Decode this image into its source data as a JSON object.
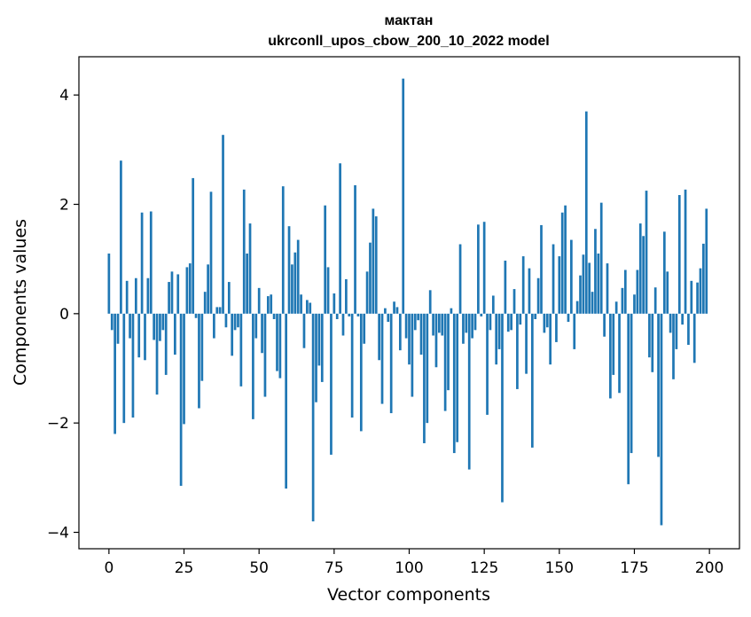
{
  "chart_data": {
    "type": "bar",
    "title": "мактан",
    "subtitle": "ukrconll_upos_cbow_200_10_2022 model",
    "xlabel": "Vector components",
    "ylabel": "Components values",
    "xlim": [
      -10,
      210
    ],
    "ylim": [
      -4.3,
      4.7
    ],
    "xticks": [
      0,
      25,
      50,
      75,
      100,
      125,
      150,
      175,
      200
    ],
    "yticks": [
      -4,
      -2,
      0,
      2,
      4
    ],
    "ytick_labels": [
      "−4",
      "−2",
      "0",
      "2",
      "4"
    ],
    "grid": false,
    "bar_color": "#1f77b4",
    "values": [
      1.1,
      -0.3,
      -2.2,
      -0.55,
      2.8,
      -2.0,
      0.6,
      -0.45,
      -1.9,
      0.65,
      -0.8,
      1.85,
      -0.85,
      0.65,
      1.87,
      -0.48,
      -1.48,
      -0.5,
      -0.3,
      -1.12,
      0.58,
      0.77,
      -0.75,
      0.72,
      -3.15,
      -2.02,
      0.85,
      0.92,
      2.48,
      -0.08,
      -1.73,
      -1.23,
      0.4,
      0.9,
      2.23,
      -0.45,
      0.12,
      0.12,
      3.27,
      -0.25,
      0.58,
      -0.77,
      -0.3,
      -0.25,
      -1.33,
      2.27,
      1.1,
      1.65,
      -1.93,
      -0.45,
      0.47,
      -0.72,
      -1.52,
      0.32,
      0.35,
      -0.1,
      -1.05,
      -1.18,
      2.33,
      -3.2,
      1.6,
      0.9,
      1.12,
      1.35,
      0.35,
      -0.63,
      0.25,
      0.2,
      -3.8,
      -1.62,
      -0.95,
      -1.25,
      1.98,
      0.85,
      -2.58,
      0.37,
      -0.1,
      2.75,
      -0.4,
      0.63,
      -0.05,
      -1.9,
      2.35,
      -0.05,
      -2.15,
      -0.55,
      0.77,
      1.3,
      1.92,
      1.78,
      -0.85,
      -1.65,
      0.1,
      -0.15,
      -1.82,
      0.22,
      0.12,
      -0.67,
      4.3,
      -0.45,
      -0.93,
      -1.52,
      -0.3,
      -0.12,
      -0.75,
      -2.37,
      -2.0,
      0.43,
      -0.4,
      -0.98,
      -0.35,
      -0.4,
      -1.78,
      -1.4,
      0.1,
      -2.55,
      -2.35,
      1.27,
      -0.55,
      -0.35,
      -2.85,
      -0.45,
      -0.3,
      1.63,
      -0.05,
      1.68,
      -1.85,
      -0.3,
      0.33,
      -0.93,
      -0.65,
      -3.45,
      0.97,
      -0.33,
      -0.3,
      0.45,
      -1.38,
      -0.2,
      1.05,
      -1.1,
      0.83,
      -2.45,
      -0.1,
      0.65,
      1.62,
      -0.35,
      -0.25,
      -0.93,
      1.27,
      -0.52,
      1.05,
      1.85,
      1.98,
      -0.15,
      1.35,
      -0.65,
      0.23,
      0.7,
      1.08,
      3.7,
      0.93,
      0.4,
      1.55,
      1.1,
      2.03,
      -0.42,
      0.92,
      -1.55,
      -1.12,
      0.22,
      -1.45,
      0.47,
      0.8,
      -3.12,
      -2.55,
      0.35,
      0.8,
      1.65,
      1.42,
      2.25,
      -0.8,
      -1.07,
      0.48,
      -2.62,
      -3.87,
      1.5,
      0.77,
      -0.35,
      -1.2,
      -0.65,
      2.17,
      -0.2,
      2.27,
      -0.57,
      0.6,
      -0.9,
      0.57,
      0.83,
      1.28,
      1.92
    ]
  }
}
